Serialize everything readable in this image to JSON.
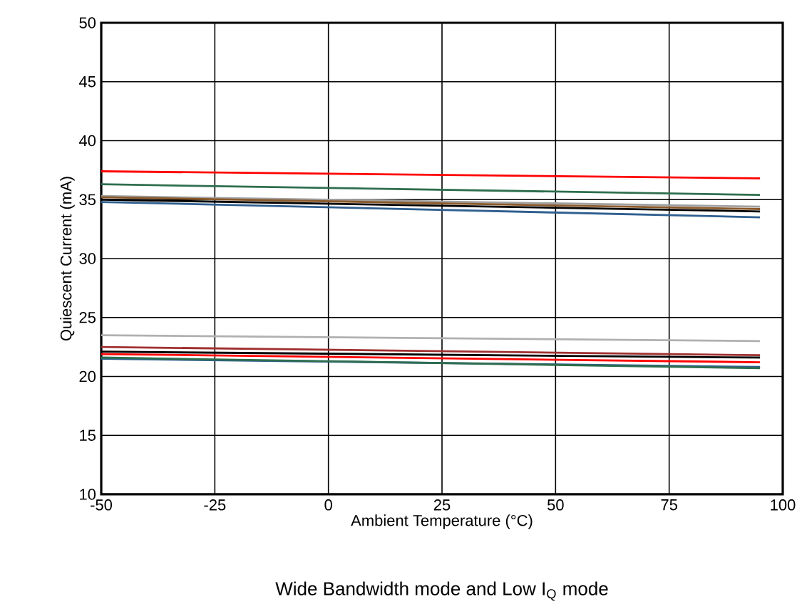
{
  "chart_data": {
    "type": "line",
    "title": "Wide Bandwidth mode and Low I$_{Q}$ mode",
    "xlabel": "Ambient Temperature (°C)",
    "ylabel": "Quiescent Current (mA)",
    "xlim": [
      -50,
      100
    ],
    "ylim": [
      10,
      50
    ],
    "xticks": [
      -50,
      -25,
      0,
      25,
      50,
      75,
      100
    ],
    "yticks": [
      10,
      15,
      20,
      25,
      30,
      35,
      40,
      45,
      50
    ],
    "grid": true,
    "marker": "none",
    "line_style": "solid",
    "x": [
      -50,
      95
    ],
    "series": [
      {
        "color": "#ff0000",
        "values": [
          37.4,
          36.8
        ]
      },
      {
        "color": "#2e6e4e",
        "values": [
          36.3,
          35.4
        ]
      },
      {
        "color": "#a0a0a0",
        "values": [
          35.3,
          34.4
        ]
      },
      {
        "color": "#8b5a2b",
        "values": [
          35.2,
          34.2
        ]
      },
      {
        "color": "#000000",
        "values": [
          35.0,
          34.0
        ]
      },
      {
        "color": "#2f5f8f",
        "values": [
          34.8,
          33.5
        ]
      },
      {
        "color": "#b0b0b0",
        "values": [
          23.5,
          23.0
        ]
      },
      {
        "color": "#a03030",
        "values": [
          22.5,
          21.8
        ]
      },
      {
        "color": "#000000",
        "values": [
          22.1,
          21.6
        ]
      },
      {
        "color": "#ff0000",
        "values": [
          21.9,
          21.2
        ]
      },
      {
        "color": "#2f5f8f",
        "values": [
          21.5,
          20.8
        ]
      },
      {
        "color": "#2e6e4e",
        "values": [
          21.6,
          20.7
        ]
      }
    ]
  }
}
